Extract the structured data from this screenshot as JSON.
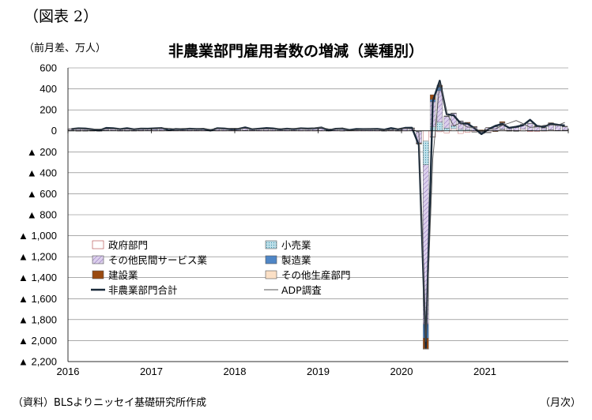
{
  "figure_label": "（図表 2）",
  "unit_label": "（前月差、万人）",
  "source_note": "（資料）BLSよりニッセイ基礎研究所作成",
  "x_unit": "（月次）",
  "colors": {
    "government": "#ffffff",
    "retail": "#bfe0ea",
    "other_services": "#dcd0ec",
    "manufacturing": "#4f86c6",
    "construction": "#9a4a10",
    "other_goods": "#fbe0c6",
    "total": "#1a2a3a",
    "adp": "#555555"
  },
  "chart_data": {
    "type": "bar",
    "stacked": true,
    "title": "非農業部門雇用者数の増減（業種別）",
    "ylabel": "（前月差、万人）",
    "xlabel": "（月次）",
    "ylim": [
      -2200,
      600
    ],
    "y_ticks": [
      600,
      400,
      200,
      0,
      -200,
      -400,
      -600,
      -800,
      -1000,
      -1200,
      -1400,
      -1600,
      -1800,
      -2000,
      -2200
    ],
    "y_tick_labels": [
      "600",
      "400",
      "200",
      "0",
      "▲ 200",
      "▲ 400",
      "▲ 600",
      "▲ 800",
      "▲ 1,000",
      "▲ 1,200",
      "▲ 1,400",
      "▲ 1,600",
      "▲ 1,800",
      "▲ 2,000",
      "▲ 2,200"
    ],
    "x_tick_labels": [
      "2016",
      "2017",
      "2018",
      "2019",
      "2020",
      "2021"
    ],
    "grid": true,
    "legend_position": "lower-left",
    "months": [
      "2016-01",
      "2016-02",
      "2016-03",
      "2016-04",
      "2016-05",
      "2016-06",
      "2016-07",
      "2016-08",
      "2016-09",
      "2016-10",
      "2016-11",
      "2016-12",
      "2017-01",
      "2017-02",
      "2017-03",
      "2017-04",
      "2017-05",
      "2017-06",
      "2017-07",
      "2017-08",
      "2017-09",
      "2017-10",
      "2017-11",
      "2017-12",
      "2018-01",
      "2018-02",
      "2018-03",
      "2018-04",
      "2018-05",
      "2018-06",
      "2018-07",
      "2018-08",
      "2018-09",
      "2018-10",
      "2018-11",
      "2018-12",
      "2019-01",
      "2019-02",
      "2019-03",
      "2019-04",
      "2019-05",
      "2019-06",
      "2019-07",
      "2019-08",
      "2019-09",
      "2019-10",
      "2019-11",
      "2019-12",
      "2020-01",
      "2020-02",
      "2020-03",
      "2020-04",
      "2020-05",
      "2020-06",
      "2020-07",
      "2020-08",
      "2020-09",
      "2020-10",
      "2020-11",
      "2020-12",
      "2021-01",
      "2021-02",
      "2021-03",
      "2021-04",
      "2021-05",
      "2021-06",
      "2021-07",
      "2021-08",
      "2021-09",
      "2021-10",
      "2021-11",
      "2021-12"
    ],
    "series": [
      {
        "name": "政府部門",
        "key": "government",
        "kind": "bar",
        "values": [
          2,
          2,
          1,
          1,
          1,
          2,
          2,
          1,
          2,
          1,
          1,
          2,
          1,
          1,
          1,
          1,
          1,
          1,
          1,
          1,
          0,
          1,
          1,
          1,
          1,
          2,
          1,
          1,
          1,
          1,
          1,
          1,
          1,
          1,
          1,
          1,
          1,
          1,
          1,
          1,
          1,
          1,
          1,
          1,
          1,
          1,
          1,
          1,
          1,
          2,
          -1,
          -98,
          -58,
          -9,
          -19,
          20,
          -25,
          -13,
          -10,
          -4,
          -14,
          -2,
          10,
          4,
          3,
          15,
          -8,
          -6,
          -2,
          7,
          3,
          5
        ]
      },
      {
        "name": "小売業",
        "key": "retail",
        "kind": "bar",
        "values": [
          5,
          3,
          4,
          3,
          2,
          3,
          2,
          1,
          2,
          1,
          2,
          1,
          1,
          1,
          1,
          1,
          1,
          1,
          1,
          0,
          0,
          1,
          1,
          1,
          1,
          1,
          1,
          1,
          1,
          1,
          0,
          0,
          1,
          1,
          1,
          1,
          0,
          0,
          0,
          -1,
          0,
          0,
          0,
          0,
          0,
          0,
          0,
          1,
          0,
          0,
          -5,
          -226,
          37,
          82,
          25,
          25,
          14,
          11,
          -3,
          -7,
          -3,
          2,
          7,
          2,
          -3,
          0,
          3,
          1,
          6,
          3,
          1,
          1
        ]
      },
      {
        "name": "その他民間サービス業",
        "key": "other_services",
        "kind": "bar",
        "values": [
          12,
          14,
          13,
          8,
          2,
          19,
          18,
          10,
          17,
          11,
          14,
          13,
          15,
          17,
          9,
          12,
          10,
          16,
          13,
          11,
          1,
          20,
          14,
          12,
          11,
          22,
          10,
          13,
          18,
          14,
          9,
          15,
          10,
          19,
          12,
          19,
          21,
          3,
          14,
          16,
          7,
          12,
          11,
          14,
          13,
          11,
          19,
          12,
          19,
          21,
          -110,
          -1520,
          240,
          300,
          110,
          120,
          74,
          58,
          34,
          -15,
          31,
          36,
          55,
          19,
          29,
          45,
          67,
          41,
          21,
          56,
          46,
          32
        ]
      },
      {
        "name": "製造業",
        "key": "manufacturing",
        "kind": "bar",
        "values": [
          -0.5,
          -1,
          -0.5,
          0.5,
          -1,
          1,
          1,
          -1,
          -0.5,
          -0.5,
          0.5,
          1,
          1,
          2,
          1,
          0.5,
          1,
          0.5,
          1,
          3,
          0.5,
          3,
          3,
          2,
          2,
          3,
          2,
          2,
          2,
          4,
          2,
          1,
          1,
          3,
          3,
          3,
          1,
          1,
          0.5,
          0.5,
          0.5,
          1,
          1,
          0.5,
          0.5,
          -3,
          5,
          -1,
          0,
          1,
          -2,
          -133,
          22,
          37,
          4,
          3,
          4,
          4,
          3,
          3,
          -1,
          2,
          5,
          -0.5,
          3,
          2,
          3,
          3,
          3,
          6,
          3,
          3
        ]
      },
      {
        "name": "建設業",
        "key": "construction",
        "kind": "bar",
        "values": [
          2,
          2,
          3,
          1,
          -1,
          1,
          1,
          1,
          2,
          2,
          2,
          1,
          3,
          5,
          0,
          0,
          1,
          1,
          1,
          3,
          1,
          1,
          2,
          3,
          3,
          6,
          3,
          2,
          2,
          3,
          1,
          2,
          2,
          3,
          3,
          3,
          5,
          -1,
          2,
          2,
          0,
          1,
          1,
          1,
          1,
          1,
          1,
          1,
          4,
          4,
          -6,
          -100,
          45,
          16,
          3,
          2,
          3,
          8,
          5,
          6,
          1,
          -6,
          11,
          -1,
          -2,
          -1,
          0,
          5,
          2,
          5,
          3,
          3
        ]
      },
      {
        "name": "その他生産部門",
        "key": "other_goods",
        "kind": "bar",
        "values": [
          0,
          -1,
          -0.5,
          -0.5,
          -1,
          0,
          0,
          0,
          0,
          0,
          0,
          0,
          0.5,
          0,
          0,
          0.5,
          0,
          0,
          0,
          0.5,
          0,
          0,
          0,
          0,
          0,
          0,
          0,
          0,
          0,
          0,
          0,
          0,
          0,
          0,
          0,
          0,
          0,
          0,
          0,
          0,
          0,
          0,
          0,
          0,
          0,
          0,
          0,
          0,
          0,
          0,
          -1,
          -6,
          -1,
          0,
          0,
          0,
          0,
          0,
          0,
          0,
          0,
          0,
          0,
          0,
          0,
          0,
          0,
          0,
          0,
          0,
          0,
          0
        ]
      },
      {
        "name": "非農業部門合計",
        "key": "total",
        "kind": "line",
        "values": [
          17,
          24,
          22,
          14,
          4,
          27,
          25,
          16,
          25,
          14,
          21,
          20,
          24,
          26,
          8,
          17,
          15,
          20,
          17,
          19,
          3,
          25,
          22,
          15,
          18,
          32,
          15,
          20,
          26,
          23,
          14,
          20,
          16,
          24,
          21,
          24,
          31,
          5,
          19,
          22,
          8,
          17,
          16,
          17,
          18,
          11,
          26,
          14,
          28,
          29,
          -137,
          -2068,
          283,
          478,
          158,
          148,
          72,
          68,
          25,
          -31,
          15,
          47,
          65,
          28,
          39,
          54,
          105,
          46,
          38,
          67,
          58,
          51
        ]
      },
      {
        "name": "ADP調査",
        "key": "adp",
        "kind": "line",
        "values": [
          20,
          21,
          19,
          16,
          17,
          18,
          19,
          18,
          17,
          15,
          22,
          15,
          25,
          26,
          25,
          17,
          23,
          19,
          17,
          23,
          13,
          22,
          19,
          25,
          23,
          24,
          20,
          16,
          18,
          18,
          22,
          16,
          23,
          22,
          18,
          27,
          30,
          18,
          15,
          27,
          3,
          10,
          14,
          19,
          13,
          11,
          7,
          21,
          24,
          18,
          -15,
          -2010,
          -270,
          460,
          170,
          48,
          75,
          36,
          30,
          -12,
          17,
          18,
          52,
          74,
          98,
          68,
          33,
          37,
          52,
          57,
          53,
          80
        ]
      }
    ]
  }
}
